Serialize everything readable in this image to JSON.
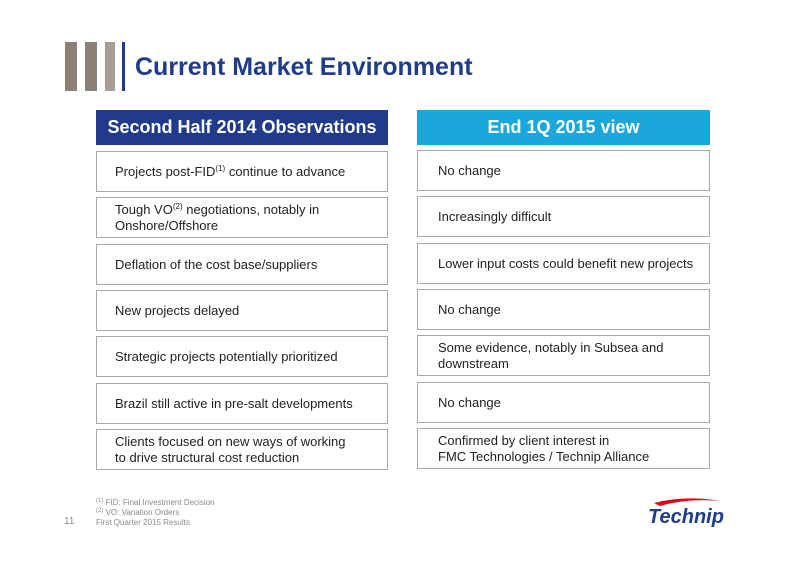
{
  "title": "Current Market Environment",
  "columns": {
    "left_header": "Second Half 2014 Observations",
    "right_header": "End 1Q 2015 view"
  },
  "rows": [
    {
      "left": {
        "pre": "Projects post-FID",
        "sup": "(1)",
        "post": " continue to advance"
      },
      "right": "No change"
    },
    {
      "left": {
        "pre": "Tough VO",
        "sup": "(2)",
        "post": " negotiations, notably in\nOnshore/Offshore"
      },
      "right": "Increasingly difficult"
    },
    {
      "left": {
        "pre": "Deflation of the cost base/suppliers",
        "sup": "",
        "post": ""
      },
      "right": "Lower input costs could benefit new projects"
    },
    {
      "left": {
        "pre": "New projects delayed",
        "sup": "",
        "post": ""
      },
      "right": "No change"
    },
    {
      "left": {
        "pre": "Strategic projects potentially prioritized",
        "sup": "",
        "post": ""
      },
      "right": "Some evidence, notably in Subsea and\ndownstream"
    },
    {
      "left": {
        "pre": "Brazil still active in pre-salt developments",
        "sup": "",
        "post": ""
      },
      "right": "No change"
    },
    {
      "left": {
        "pre": "Clients focused on new ways of working\nto drive structural cost reduction",
        "sup": "",
        "post": ""
      },
      "right": "Confirmed by client interest in\nFMC Technologies / Technip Alliance"
    }
  ],
  "footnotes": [
    {
      "mark": "(1)",
      "text": " FID: Final Investment Decision"
    },
    {
      "mark": "(2)",
      "text": " VO: Variation Orders"
    }
  ],
  "footer": {
    "page_number": "11",
    "text": "First Quarter 2015 Results"
  },
  "logo": {
    "text": "Technip"
  },
  "colors": {
    "navy": "#1f3b8a",
    "cyan": "#1ba7dc",
    "taupe": "#8c7f76",
    "logo_red": "#e2001a"
  }
}
